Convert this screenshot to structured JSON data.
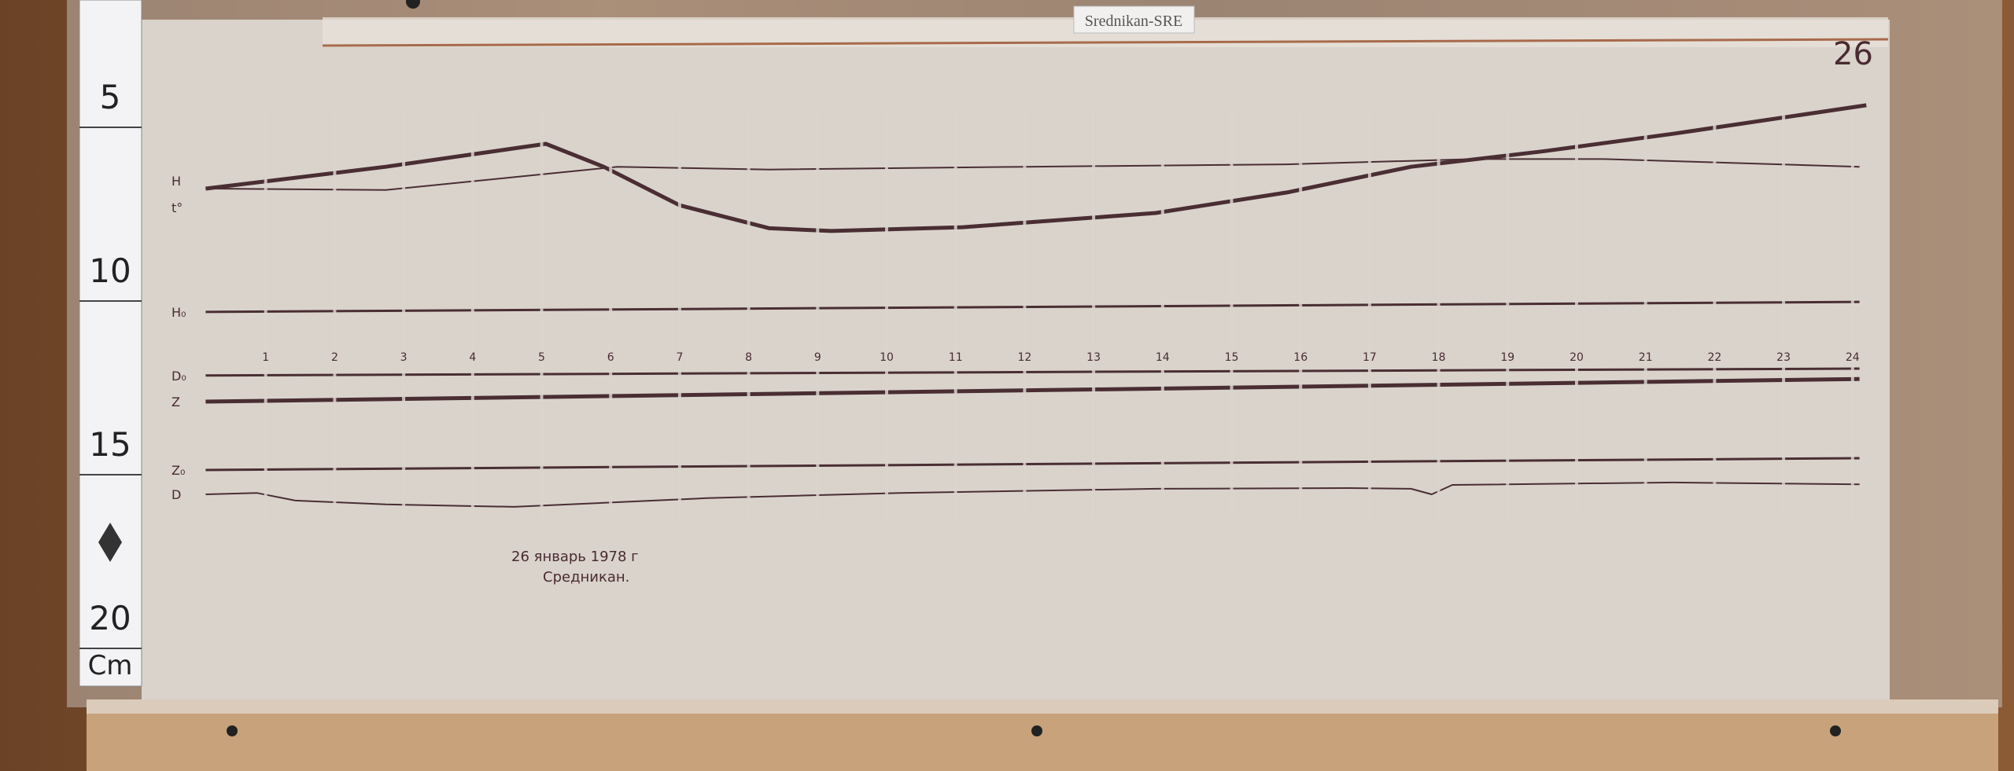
{
  "label_tag": "Srednikan-SRE",
  "sheet_number": "26",
  "annotation": {
    "line1": "26 январь 1978 г",
    "line2": "Средникан."
  },
  "ruler": {
    "ticks": [
      "5",
      "10",
      "15",
      "20"
    ],
    "unit": "Cm"
  },
  "colors": {
    "paper": "#d9d3cc",
    "trace": "#4a2e33",
    "wood": "#7a4c2c"
  },
  "chart_data": {
    "type": "line",
    "title": "",
    "xlabel": "",
    "ylabel": "",
    "x_unit_note": "hours",
    "xlim": [
      0,
      24
    ],
    "y_axis_ruler_cm": [
      5,
      20
    ],
    "y_inverted": true,
    "grid": false,
    "hour_labels": [
      "1",
      "2",
      "3",
      "4",
      "5",
      "6",
      "7",
      "8",
      "9",
      "10",
      "11",
      "12",
      "13",
      "14",
      "15",
      "16",
      "17",
      "18",
      "19",
      "20",
      "21",
      "22",
      "23",
      "24"
    ],
    "series": [
      {
        "name": "H",
        "weight": "heavy",
        "points": [
          [
            0.13,
            7.67
          ],
          [
            2.74,
            7.04
          ],
          [
            5.06,
            6.38
          ],
          [
            5.9,
            7.04
          ],
          [
            7.0,
            8.15
          ],
          [
            8.3,
            8.81
          ],
          [
            9.2,
            8.89
          ],
          [
            11.1,
            8.78
          ],
          [
            13.9,
            8.37
          ],
          [
            15.8,
            7.78
          ],
          [
            17.6,
            7.04
          ],
          [
            19.5,
            6.6
          ],
          [
            21.4,
            6.09
          ],
          [
            24.2,
            5.27
          ]
        ]
      },
      {
        "name": "t°",
        "weight": "thin",
        "points": [
          [
            0.2,
            7.67
          ],
          [
            2.74,
            7.71
          ],
          [
            4.6,
            7.34
          ],
          [
            6.1,
            7.04
          ],
          [
            8.3,
            7.12
          ],
          [
            12.0,
            7.04
          ],
          [
            15.8,
            6.97
          ],
          [
            18.5,
            6.82
          ],
          [
            20.4,
            6.82
          ],
          [
            24.1,
            7.04
          ]
        ]
      },
      {
        "name": "H₀",
        "weight": "medium",
        "points": [
          [
            0.13,
            11.22
          ],
          [
            24.1,
            10.93
          ]
        ]
      },
      {
        "name": "D₀",
        "weight": "medium",
        "points": [
          [
            0.13,
            13.05
          ],
          [
            24.1,
            12.85
          ]
        ]
      },
      {
        "name": "Z",
        "weight": "heavy",
        "points": [
          [
            0.13,
            13.8
          ],
          [
            24.1,
            13.15
          ]
        ]
      },
      {
        "name": "Z₀",
        "weight": "medium",
        "points": [
          [
            0.13,
            15.77
          ],
          [
            24.1,
            15.43
          ]
        ]
      },
      {
        "name": "D",
        "weight": "thin",
        "points": [
          [
            0.13,
            16.47
          ],
          [
            0.87,
            16.43
          ],
          [
            1.43,
            16.65
          ],
          [
            2.74,
            16.76
          ],
          [
            4.6,
            16.83
          ],
          [
            7.4,
            16.58
          ],
          [
            10.2,
            16.43
          ],
          [
            13.9,
            16.31
          ],
          [
            16.7,
            16.29
          ],
          [
            17.6,
            16.31
          ],
          [
            17.9,
            16.47
          ],
          [
            18.2,
            16.2
          ],
          [
            21.4,
            16.13
          ],
          [
            24.1,
            16.18
          ]
        ]
      }
    ]
  }
}
